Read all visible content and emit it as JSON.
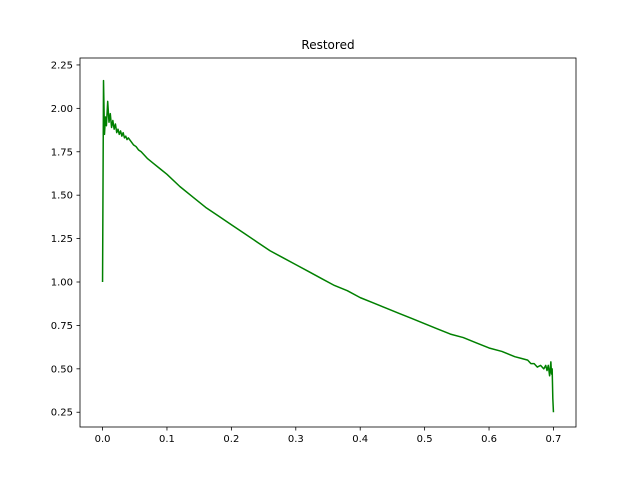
{
  "chart_data": {
    "type": "line",
    "title": "Restored",
    "xlabel": "",
    "ylabel": "",
    "xlim": [
      -0.035,
      0.735
    ],
    "ylim": [
      0.165,
      2.29
    ],
    "xticks": [
      "0.0",
      "0.1",
      "0.2",
      "0.3",
      "0.4",
      "0.5",
      "0.6",
      "0.7"
    ],
    "yticks": [
      "0.25",
      "0.50",
      "0.75",
      "1.00",
      "1.25",
      "1.50",
      "1.75",
      "2.00",
      "2.25"
    ],
    "grid": false,
    "line_color": "#008000",
    "series": [
      {
        "x": [
          0.0,
          0.0015,
          0.003,
          0.0045,
          0.006,
          0.008,
          0.01,
          0.012,
          0.014,
          0.016,
          0.018,
          0.02,
          0.022,
          0.024,
          0.026,
          0.028,
          0.03,
          0.032,
          0.034,
          0.036,
          0.038,
          0.04,
          0.044,
          0.048,
          0.052,
          0.056,
          0.06,
          0.065,
          0.07,
          0.08,
          0.09,
          0.1,
          0.12,
          0.14,
          0.16,
          0.18,
          0.2,
          0.22,
          0.24,
          0.26,
          0.28,
          0.3,
          0.32,
          0.34,
          0.36,
          0.38,
          0.4,
          0.42,
          0.44,
          0.46,
          0.48,
          0.5,
          0.52,
          0.54,
          0.56,
          0.58,
          0.6,
          0.62,
          0.64,
          0.65,
          0.66,
          0.665,
          0.67,
          0.675,
          0.68,
          0.685,
          0.688,
          0.69,
          0.692,
          0.694,
          0.696,
          0.697,
          0.698,
          0.699,
          0.7
        ],
        "y": [
          1.0,
          2.16,
          1.85,
          1.95,
          1.9,
          2.04,
          1.92,
          1.97,
          1.89,
          1.93,
          1.88,
          1.91,
          1.86,
          1.88,
          1.85,
          1.87,
          1.84,
          1.86,
          1.83,
          1.84,
          1.82,
          1.83,
          1.81,
          1.79,
          1.78,
          1.76,
          1.75,
          1.73,
          1.71,
          1.68,
          1.65,
          1.62,
          1.55,
          1.49,
          1.43,
          1.38,
          1.33,
          1.28,
          1.23,
          1.18,
          1.14,
          1.1,
          1.06,
          1.02,
          0.98,
          0.95,
          0.91,
          0.88,
          0.85,
          0.82,
          0.79,
          0.76,
          0.73,
          0.7,
          0.68,
          0.65,
          0.62,
          0.6,
          0.57,
          0.56,
          0.55,
          0.53,
          0.53,
          0.51,
          0.52,
          0.5,
          0.52,
          0.49,
          0.52,
          0.46,
          0.54,
          0.47,
          0.5,
          0.33,
          0.25
        ]
      }
    ]
  }
}
